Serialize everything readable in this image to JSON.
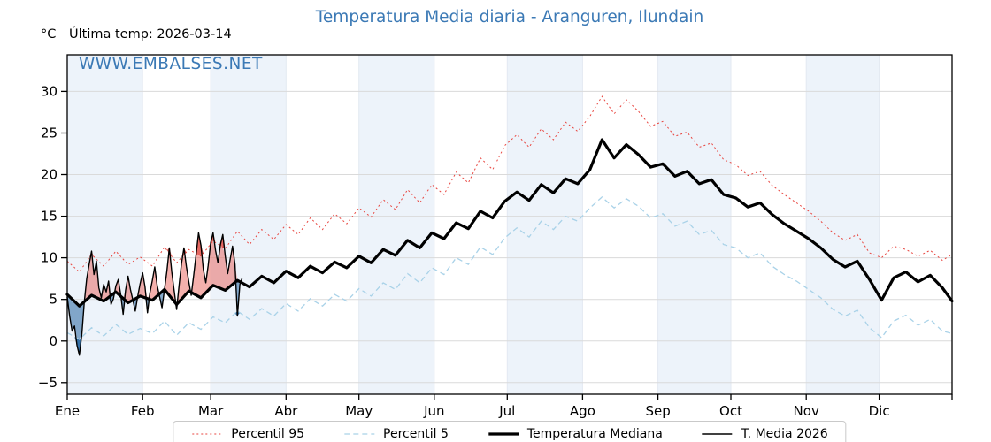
{
  "header": {
    "title": "Temperatura Media diaria - Aranguren, Ilundain",
    "unit_label": "°C",
    "last_temp_label": "Última temp: 2026-03-14",
    "watermark": "WWW.EMBALSES.NET"
  },
  "colors": {
    "accent_blue": "#3b79b5",
    "p95_red": "#e8453f",
    "p5_blue": "#a9d2e8",
    "median_black": "#000000",
    "t2026_black": "#000000",
    "fill_above_light": "rgba(230,80,72,0.45)",
    "fill_above_p95": "rgba(222,55,45,0.75)",
    "fill_below_light": "rgba(70,125,175,0.65)",
    "fill_below_p5": "rgba(36,100,158,0.92)",
    "band_light": "#edf3fa",
    "hgrid": "#dadada",
    "vgrid": "#e3e9f2",
    "spine": "#000000",
    "legend_border": "#c9c9c9"
  },
  "legend": {
    "items": [
      {
        "label": "Percentil 95"
      },
      {
        "label": "Percentil 5"
      },
      {
        "label": "Temperatura Mediana"
      },
      {
        "label": "T. Media 2026"
      }
    ]
  },
  "chart_data": {
    "type": "line",
    "title": "Temperatura Media diaria - Aranguren, Ilundain",
    "xlabel": "",
    "ylabel": "°C",
    "ylim": [
      -6.4,
      34.4
    ],
    "grid": true,
    "legend_position": "bottom",
    "yticks": [
      30,
      25,
      20,
      15,
      10,
      5,
      0,
      -5
    ],
    "ytick_labels": [
      "30",
      "25",
      "20",
      "15",
      "10",
      "5",
      "0",
      "−5"
    ],
    "xtick_labels": [
      "Ene",
      "Feb",
      "Mar",
      "Abr",
      "May",
      "Jun",
      "Jul",
      "Ago",
      "Sep",
      "Oct",
      "Nov",
      "Dic"
    ],
    "month_start_days": [
      1,
      32,
      60,
      91,
      121,
      152,
      182,
      213,
      244,
      274,
      305,
      335
    ],
    "days_in_year": 365,
    "last_data_day": 73,
    "series": [
      {
        "name": "Percentil 95",
        "x_start_day": 1,
        "x_step_days": 5,
        "values": [
          9.6,
          8.3,
          10.4,
          9.0,
          10.8,
          9.2,
          10.1,
          9.0,
          11.3,
          9.4,
          11.0,
          10.2,
          12.0,
          11.1,
          13.2,
          11.6,
          13.4,
          12.2,
          14.0,
          12.8,
          14.8,
          13.4,
          15.3,
          14.1,
          16.0,
          14.9,
          17.0,
          15.8,
          18.2,
          16.6,
          18.8,
          17.6,
          20.3,
          19.0,
          22.0,
          20.6,
          23.5,
          24.8,
          23.3,
          25.5,
          24.2,
          26.3,
          25.2,
          27.0,
          29.4,
          27.3,
          29.0,
          27.6,
          25.8,
          26.4,
          24.6,
          25.1,
          23.3,
          23.8,
          21.8,
          21.2,
          19.9,
          20.4,
          18.7,
          17.6,
          16.6,
          15.6,
          14.4,
          13.0,
          12.1,
          12.8,
          10.6,
          10.0,
          11.4,
          11.0,
          10.2,
          10.9,
          9.7,
          10.4
        ]
      },
      {
        "name": "Percentil 5",
        "x_start_day": 1,
        "x_step_days": 5,
        "values": [
          1.0,
          0.2,
          1.6,
          0.6,
          2.0,
          0.8,
          1.5,
          0.9,
          2.4,
          0.7,
          2.2,
          1.4,
          2.9,
          2.2,
          3.6,
          2.6,
          3.9,
          3.0,
          4.5,
          3.6,
          5.1,
          4.2,
          5.6,
          4.8,
          6.3,
          5.4,
          7.0,
          6.2,
          8.1,
          7.0,
          8.8,
          8.0,
          10.0,
          9.2,
          11.3,
          10.4,
          12.4,
          13.6,
          12.5,
          14.4,
          13.4,
          15.0,
          14.4,
          16.0,
          17.3,
          16.0,
          17.1,
          16.2,
          14.8,
          15.3,
          13.8,
          14.4,
          12.8,
          13.3,
          11.6,
          11.2,
          10.0,
          10.6,
          9.0,
          8.0,
          7.2,
          6.2,
          5.2,
          3.8,
          3.0,
          3.7,
          1.6,
          0.4,
          2.4,
          3.1,
          1.9,
          2.6,
          1.2,
          0.9
        ]
      },
      {
        "name": "Temperatura Mediana",
        "x_start_day": 1,
        "x_step_days": 5,
        "values": [
          5.6,
          4.2,
          5.5,
          4.8,
          5.9,
          4.6,
          5.4,
          4.9,
          6.2,
          4.4,
          6.0,
          5.2,
          6.7,
          6.1,
          7.3,
          6.5,
          7.8,
          7.0,
          8.4,
          7.6,
          9.0,
          8.2,
          9.5,
          8.8,
          10.2,
          9.4,
          11.0,
          10.3,
          12.1,
          11.2,
          13.0,
          12.3,
          14.2,
          13.5,
          15.6,
          14.8,
          16.8,
          17.9,
          16.9,
          18.8,
          17.8,
          19.5,
          18.9,
          20.6,
          24.2,
          22.0,
          23.6,
          22.4,
          20.9,
          21.3,
          19.8,
          20.4,
          18.9,
          19.4,
          17.6,
          17.2,
          16.1,
          16.6,
          15.2,
          14.1,
          13.2,
          12.3,
          11.2,
          9.8,
          8.9,
          9.6,
          7.4,
          4.9,
          7.6,
          8.3,
          7.1,
          7.9,
          6.4,
          4.8
        ]
      },
      {
        "name": "T. Media 2026",
        "x_start_day": 1,
        "x_step_days": 1,
        "values": [
          5.3,
          3.0,
          1.2,
          1.8,
          -0.5,
          -1.7,
          0.8,
          4.6,
          7.5,
          9.2,
          10.8,
          8.0,
          9.6,
          6.4,
          5.2,
          6.8,
          5.9,
          7.2,
          4.4,
          5.1,
          6.6,
          7.4,
          5.6,
          3.2,
          6.1,
          7.8,
          6.2,
          4.9,
          3.6,
          5.4,
          6.9,
          8.2,
          6.5,
          3.4,
          5.8,
          7.3,
          8.9,
          6.7,
          5.3,
          4.0,
          6.2,
          8.4,
          11.2,
          8.3,
          6.0,
          3.8,
          6.7,
          9.3,
          11.2,
          9.0,
          7.1,
          5.5,
          7.9,
          10.4,
          13.0,
          11.5,
          8.6,
          7.0,
          9.1,
          11.8,
          13.0,
          10.9,
          9.4,
          11.6,
          12.8,
          10.2,
          8.1,
          9.8,
          11.4,
          9.2,
          3.0,
          6.8,
          7.6
        ]
      }
    ]
  }
}
